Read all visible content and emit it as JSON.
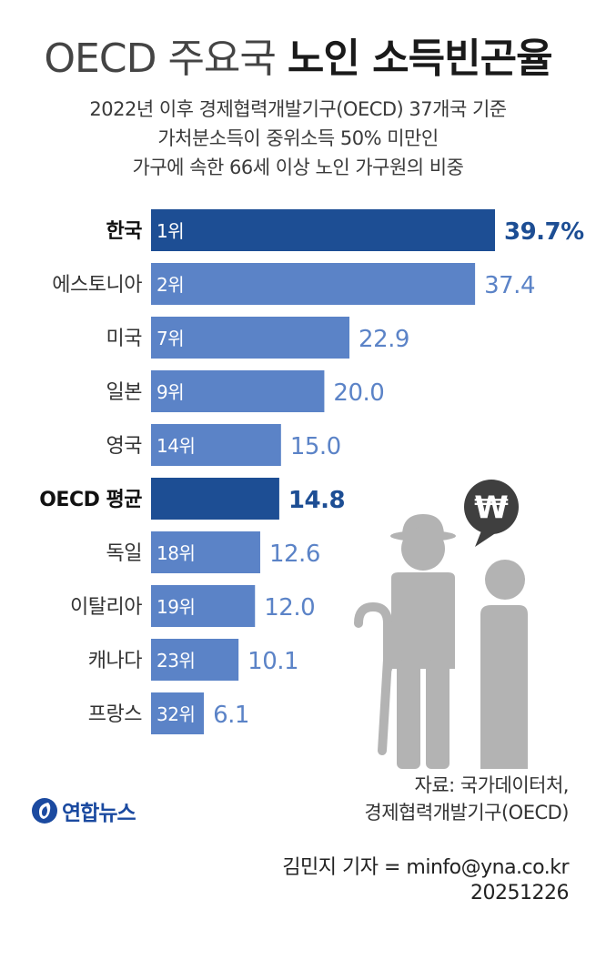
{
  "title": {
    "light": "OECD 주요국",
    "bold": "노인 소득빈곤율"
  },
  "subtitle": [
    "2022년 이후 경제협력개발기구(OECD) 37개국 기준",
    "가처분소득이 중위소득 50% 미만인",
    "가구에 속한 66세 이상 노인 가구원의 비중"
  ],
  "colors": {
    "highlight_bar": "#1d4e94",
    "normal_bar": "#5b83c7",
    "highlight_value": "#1d4e94",
    "normal_value": "#5b83c7",
    "illustration": "#b3b3b3",
    "bubble": "#3f3f3f"
  },
  "chart_data": {
    "type": "bar",
    "orientation": "horizontal",
    "categories": [
      "한국",
      "에스토니아",
      "미국",
      "일본",
      "영국",
      "OECD 평균",
      "독일",
      "이탈리아",
      "캐나다",
      "프랑스"
    ],
    "values": [
      39.7,
      37.4,
      22.9,
      20.0,
      15.0,
      14.8,
      12.6,
      12.0,
      10.1,
      6.1
    ],
    "value_labels": [
      "39.7%",
      "37.4",
      "22.9",
      "20.0",
      "15.0",
      "14.8",
      "12.6",
      "12.0",
      "10.1",
      "6.1"
    ],
    "ranks": [
      "1위",
      "2위",
      "7위",
      "9위",
      "14위",
      "",
      "18위",
      "19위",
      "23위",
      "32위"
    ],
    "highlighted": [
      "한국",
      "OECD 평균"
    ],
    "xlim": [
      0,
      39.7
    ]
  },
  "illustration": {
    "symbol": "₩",
    "icons": [
      "won-speech-bubble-icon",
      "elderly-man-with-cane-icon",
      "elderly-woman-icon"
    ]
  },
  "source": [
    "자료: 국가데이터처,",
    "경제협력개발기구(OECD)"
  ],
  "logo": {
    "text": "연합뉴스",
    "icon": "yonhap-logo-icon"
  },
  "byline": {
    "reporter": "김민지 기자 = minfo@yna.co.kr",
    "date": "20251226"
  }
}
